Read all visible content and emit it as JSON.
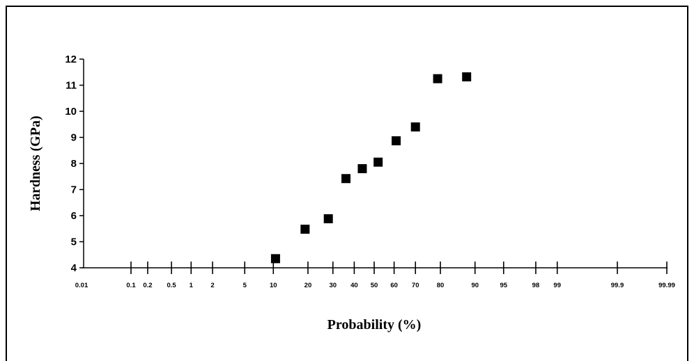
{
  "chart_data": {
    "type": "scatter",
    "title": "",
    "xlabel": "Probability (%)",
    "ylabel": "Hardness (GPa)",
    "x_scale": "normal-probability",
    "ylim": [
      4,
      12
    ],
    "y_ticks": [
      4,
      5,
      6,
      7,
      8,
      9,
      10,
      11,
      12
    ],
    "x_ticks": [
      0.01,
      0.1,
      0.2,
      0.5,
      1,
      2,
      5,
      10,
      20,
      30,
      40,
      50,
      60,
      70,
      80,
      90,
      95,
      98,
      99,
      99.9,
      99.99
    ],
    "x_tick_labels": [
      "0.01",
      "0.1",
      "0.2",
      "0.5",
      "1",
      "2",
      "5",
      "10",
      "20",
      "30",
      "40",
      "50",
      "60",
      "70",
      "80",
      "90",
      "95",
      "98",
      "99",
      "99.9",
      "99.99"
    ],
    "grid": false,
    "legend": "none",
    "marker": "square",
    "marker_color": "#000000",
    "series": [
      {
        "points": [
          {
            "x": 10.5,
            "y": 4.35
          },
          {
            "x": 19,
            "y": 5.48
          },
          {
            "x": 28,
            "y": 5.88
          },
          {
            "x": 36,
            "y": 7.42
          },
          {
            "x": 44,
            "y": 7.8
          },
          {
            "x": 52,
            "y": 8.05
          },
          {
            "x": 61,
            "y": 8.87
          },
          {
            "x": 70,
            "y": 9.4
          },
          {
            "x": 79,
            "y": 11.25
          },
          {
            "x": 88,
            "y": 11.32
          }
        ]
      }
    ]
  }
}
